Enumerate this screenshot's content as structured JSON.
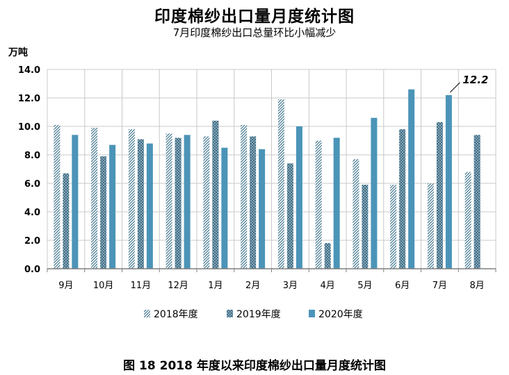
{
  "title": "印度棉纱出口量月度统计图",
  "subtitle": "7月印度棉纱出口总量环比小幅减少",
  "unit_label": "万吨",
  "caption": "图 18    2018 年度以来印度棉纱出口量月度统计图",
  "colors": {
    "s2018": "#4a7c93",
    "s2019": "#3e6e87",
    "s2020": "#4b94b8",
    "grid": "#c8c8c8"
  },
  "chart_data": {
    "type": "bar",
    "title": "印度棉纱出口量月度统计图",
    "subtitle": "7月印度棉纱出口总量环比小幅减少",
    "ylabel": "万吨",
    "ylim": [
      0,
      14
    ],
    "yticks": [
      "0.0",
      "2.0",
      "4.0",
      "6.0",
      "8.0",
      "10.0",
      "12.0",
      "14.0"
    ],
    "grid": true,
    "legend_position": "bottom",
    "categories": [
      "9月",
      "10月",
      "11月",
      "12月",
      "1月",
      "2月",
      "3月",
      "4月",
      "5月",
      "6月",
      "7月",
      "8月"
    ],
    "series": [
      {
        "name": "2018年度",
        "pattern": "diagonal",
        "values": [
          10.1,
          9.9,
          9.8,
          9.5,
          9.3,
          10.1,
          11.9,
          9.0,
          7.7,
          5.9,
          6.0,
          6.8
        ]
      },
      {
        "name": "2019年度",
        "pattern": "dots",
        "values": [
          6.7,
          7.9,
          9.1,
          9.2,
          10.4,
          9.3,
          7.4,
          1.8,
          5.9,
          9.8,
          10.3,
          9.4
        ]
      },
      {
        "name": "2020年度",
        "pattern": "solid",
        "values": [
          9.4,
          8.7,
          8.8,
          9.4,
          8.5,
          8.4,
          10.0,
          9.2,
          10.6,
          12.6,
          12.2,
          null
        ]
      }
    ],
    "annotations": [
      {
        "text": "12.2",
        "category": "7月",
        "series": "2020年度"
      }
    ]
  }
}
